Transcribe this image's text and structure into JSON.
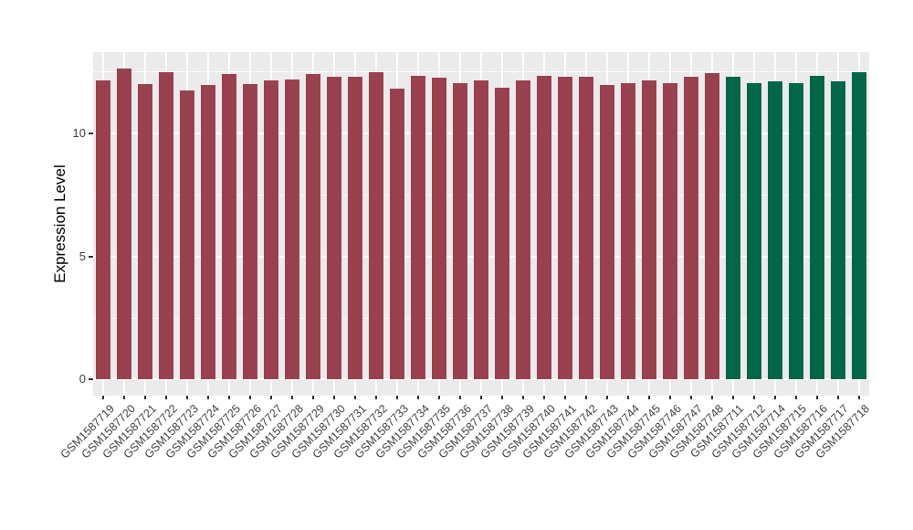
{
  "figure": {
    "background": "#FFFFFF",
    "panel_background": "#EBEBEB",
    "grid_color": "#FFFFFF",
    "axis_text_color": "#404040",
    "axis_title_color": "#000000",
    "tick_mark_color": "#333333"
  },
  "chart_data": {
    "type": "bar",
    "title": "",
    "xlabel": "",
    "ylabel": "Expression Level",
    "yticks": [
      0,
      5,
      10
    ],
    "yticks_minor": [
      2.5,
      7.5,
      12.5
    ],
    "ylim": [
      -0.65,
      13.3
    ],
    "grid": "ggplot-style: white major+minor horizontal gridlines and white vertical gridline at each category center, on light gray panel",
    "legend_position": "none",
    "categories": [
      "GSM1587719",
      "GSM1587720",
      "GSM1587721",
      "GSM1587722",
      "GSM1587723",
      "GSM1587724",
      "GSM1587725",
      "GSM1587726",
      "GSM1587727",
      "GSM1587728",
      "GSM1587729",
      "GSM1587730",
      "GSM1587731",
      "GSM1587732",
      "GSM1587733",
      "GSM1587734",
      "GSM1587735",
      "GSM1587736",
      "GSM1587737",
      "GSM1587738",
      "GSM1587739",
      "GSM1587740",
      "GSM1587741",
      "GSM1587742",
      "GSM1587743",
      "GSM1587744",
      "GSM1587745",
      "GSM1587746",
      "GSM1587747",
      "GSM1587748",
      "GSM1587711",
      "GSM1587712",
      "GSM1587714",
      "GSM1587715",
      "GSM1587716",
      "GSM1587717",
      "GSM1587718"
    ],
    "values": [
      12.15,
      12.65,
      12.0,
      12.5,
      11.75,
      11.95,
      12.4,
      12.0,
      12.15,
      12.2,
      12.4,
      12.3,
      12.3,
      12.5,
      11.8,
      12.35,
      12.25,
      12.05,
      12.15,
      11.85,
      12.15,
      12.35,
      12.3,
      12.3,
      11.95,
      12.05,
      12.15,
      12.05,
      12.3,
      12.45,
      12.3,
      12.05,
      12.1,
      12.05,
      12.35,
      12.1,
      12.5
    ],
    "group_index": [
      0,
      0,
      0,
      0,
      0,
      0,
      0,
      0,
      0,
      0,
      0,
      0,
      0,
      0,
      0,
      0,
      0,
      0,
      0,
      0,
      0,
      0,
      0,
      0,
      0,
      0,
      0,
      0,
      0,
      0,
      1,
      1,
      1,
      1,
      1,
      1,
      1
    ],
    "group_colors": [
      "#9A4150",
      "#026648"
    ]
  }
}
